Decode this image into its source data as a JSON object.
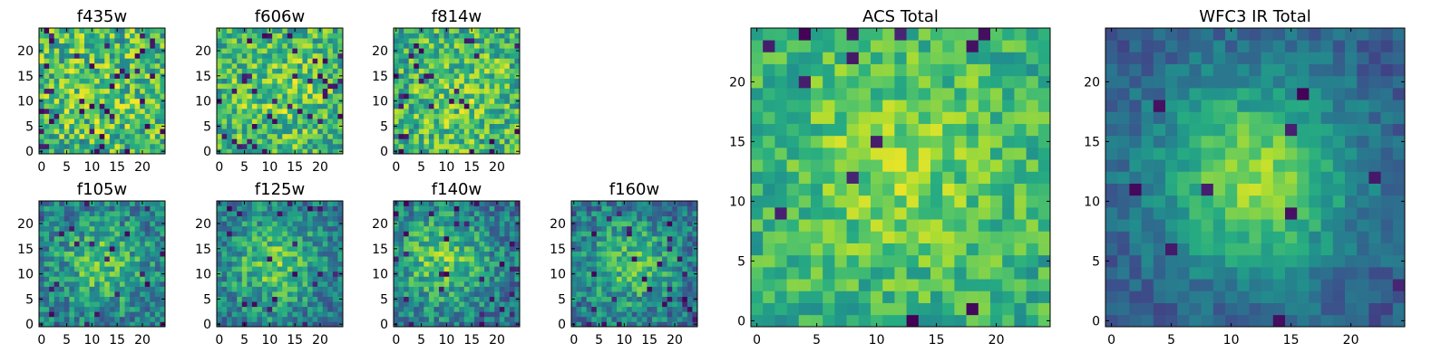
{
  "chart_data": [
    {
      "type": "heatmap",
      "title": "f435w",
      "grid_size": 25,
      "x_ticks": [
        0,
        5,
        10,
        15,
        20
      ],
      "y_ticks": [
        0,
        5,
        10,
        15,
        20
      ],
      "xlim": [
        -0.5,
        24.5
      ],
      "ylim": [
        -0.5,
        24.5
      ],
      "colormap": "viridis",
      "pattern": {
        "seed": 11,
        "noise": 0.36,
        "blob_amp": 0.06,
        "blob_cx": 12,
        "blob_cy": 12,
        "blob_sigma": 9,
        "baseline": 0.66,
        "dark_fraction": 0.06
      }
    },
    {
      "type": "heatmap",
      "title": "f606w",
      "grid_size": 25,
      "x_ticks": [
        0,
        5,
        10,
        15,
        20
      ],
      "y_ticks": [
        0,
        5,
        10,
        15,
        20
      ],
      "xlim": [
        -0.5,
        24.5
      ],
      "ylim": [
        -0.5,
        24.5
      ],
      "colormap": "viridis",
      "pattern": {
        "seed": 23,
        "noise": 0.32,
        "blob_amp": 0.12,
        "blob_cx": 12,
        "blob_cy": 12,
        "blob_sigma": 8,
        "baseline": 0.64,
        "dark_fraction": 0.05
      }
    },
    {
      "type": "heatmap",
      "title": "f814w",
      "grid_size": 25,
      "x_ticks": [
        0,
        5,
        10,
        15,
        20
      ],
      "y_ticks": [
        0,
        5,
        10,
        15,
        20
      ],
      "xlim": [
        -0.5,
        24.5
      ],
      "ylim": [
        -0.5,
        24.5
      ],
      "colormap": "viridis",
      "pattern": {
        "seed": 37,
        "noise": 0.33,
        "blob_amp": 0.1,
        "blob_cx": 13,
        "blob_cy": 11,
        "blob_sigma": 8,
        "baseline": 0.64,
        "dark_fraction": 0.05
      }
    },
    {
      "type": "heatmap",
      "title": "f105w",
      "grid_size": 25,
      "x_ticks": [
        0,
        5,
        10,
        15,
        20
      ],
      "y_ticks": [
        0,
        5,
        10,
        15,
        20
      ],
      "xlim": [
        -0.5,
        24.5
      ],
      "ylim": [
        -0.5,
        24.5
      ],
      "colormap": "viridis",
      "pattern": {
        "seed": 41,
        "noise": 0.28,
        "blob_amp": 0.3,
        "blob_cx": 12,
        "blob_cy": 12,
        "blob_sigma": 6,
        "baseline": 0.42,
        "dark_fraction": 0.04
      }
    },
    {
      "type": "heatmap",
      "title": "f125w",
      "grid_size": 25,
      "x_ticks": [
        0,
        5,
        10,
        15,
        20
      ],
      "y_ticks": [
        0,
        5,
        10,
        15,
        20
      ],
      "xlim": [
        -0.5,
        24.5
      ],
      "ylim": [
        -0.5,
        24.5
      ],
      "colormap": "viridis",
      "pattern": {
        "seed": 53,
        "noise": 0.27,
        "blob_amp": 0.34,
        "blob_cx": 11,
        "blob_cy": 12,
        "blob_sigma": 6.5,
        "baseline": 0.4,
        "dark_fraction": 0.04
      }
    },
    {
      "type": "heatmap",
      "title": "f140w",
      "grid_size": 25,
      "x_ticks": [
        0,
        5,
        10,
        15,
        20
      ],
      "y_ticks": [
        0,
        5,
        10,
        15,
        20
      ],
      "xlim": [
        -0.5,
        24.5
      ],
      "ylim": [
        -0.5,
        24.5
      ],
      "colormap": "viridis",
      "pattern": {
        "seed": 67,
        "noise": 0.27,
        "blob_amp": 0.36,
        "blob_cx": 9,
        "blob_cy": 13,
        "blob_sigma": 6.5,
        "baseline": 0.4,
        "dark_fraction": 0.04
      }
    },
    {
      "type": "heatmap",
      "title": "f160w",
      "grid_size": 25,
      "x_ticks": [
        0,
        5,
        10,
        15,
        20
      ],
      "y_ticks": [
        0,
        5,
        10,
        15,
        20
      ],
      "xlim": [
        -0.5,
        24.5
      ],
      "ylim": [
        -0.5,
        24.5
      ],
      "colormap": "viridis",
      "pattern": {
        "seed": 79,
        "noise": 0.27,
        "blob_amp": 0.32,
        "blob_cx": 11,
        "blob_cy": 12,
        "blob_sigma": 6.5,
        "baseline": 0.38,
        "dark_fraction": 0.05
      }
    },
    {
      "type": "heatmap",
      "title": "ACS Total",
      "grid_size": 25,
      "x_ticks": [
        0,
        5,
        10,
        15,
        20
      ],
      "y_ticks": [
        0,
        5,
        10,
        15,
        20
      ],
      "xlim": [
        -0.5,
        24.5
      ],
      "ylim": [
        -0.5,
        24.5
      ],
      "colormap": "viridis",
      "pattern": {
        "seed": 97,
        "noise": 0.22,
        "blob_amp": 0.2,
        "blob_cx": 12,
        "blob_cy": 13,
        "blob_sigma": 7,
        "baseline": 0.62,
        "dark_fraction": 0.03
      }
    },
    {
      "type": "heatmap",
      "title": "WFC3 IR Total",
      "grid_size": 25,
      "x_ticks": [
        0,
        5,
        10,
        15,
        20
      ],
      "y_ticks": [
        0,
        5,
        10,
        15,
        20
      ],
      "xlim": [
        -0.5,
        24.5
      ],
      "ylim": [
        -0.5,
        24.5
      ],
      "colormap": "viridis",
      "pattern": {
        "seed": 131,
        "noise": 0.14,
        "blob_amp": 0.55,
        "blob_cx": 12,
        "blob_cy": 12,
        "blob_sigma": 6,
        "baseline": 0.28,
        "dark_fraction": 0.02
      }
    }
  ]
}
